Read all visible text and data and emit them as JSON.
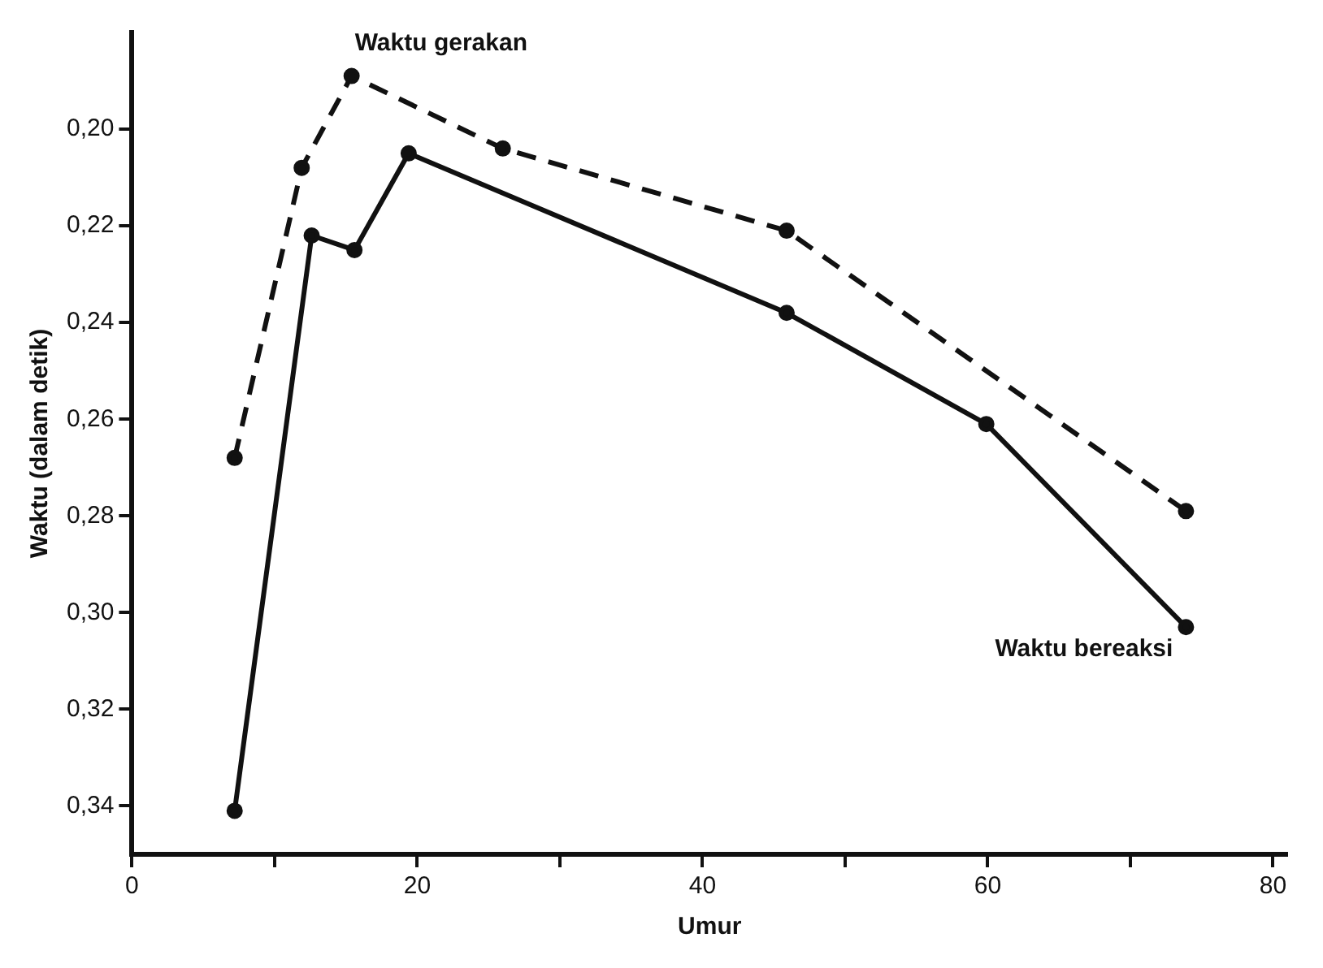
{
  "chart_data": {
    "type": "line",
    "xlabel": "Umur",
    "ylabel": "Waktu (dalam detik)",
    "xlim": [
      0,
      81
    ],
    "xticks": [
      0,
      {
        "value": 10,
        "label": null
      },
      20,
      {
        "value": 30,
        "label": null
      },
      40,
      {
        "value": 50,
        "label": null
      },
      60,
      {
        "value": 70,
        "label": null
      },
      80
    ],
    "ylim": [
      0.35,
      0.18
    ],
    "yticks": [
      {
        "value": 0.2,
        "label": "0,20"
      },
      {
        "value": 0.22,
        "label": "0,22"
      },
      {
        "value": 0.24,
        "label": "0,24"
      },
      {
        "value": 0.26,
        "label": "0,26"
      },
      {
        "value": 0.28,
        "label": "0,28"
      },
      {
        "value": 0.3,
        "label": "0,30"
      },
      {
        "value": 0.32,
        "label": "0,32"
      },
      {
        "value": 0.34,
        "label": "0,34"
      }
    ],
    "grid": false,
    "legend": false,
    "marker": "circle",
    "series": [
      {
        "name": "Waktu gerakan",
        "color": "#111111",
        "line_style": "dashed",
        "x": [
          7.2,
          11.9,
          15.4,
          26,
          45.9,
          73.9
        ],
        "values": [
          0.268,
          0.208,
          0.189,
          0.204,
          0.221,
          0.279
        ]
      },
      {
        "name": "Waktu bereaksi",
        "color": "#111111",
        "line_style": "solid",
        "x": [
          7.2,
          12.6,
          15.6,
          19.4,
          45.9,
          59.9,
          73.9
        ],
        "values": [
          0.341,
          0.222,
          0.225,
          0.205,
          0.238,
          0.261,
          0.303
        ]
      }
    ]
  }
}
